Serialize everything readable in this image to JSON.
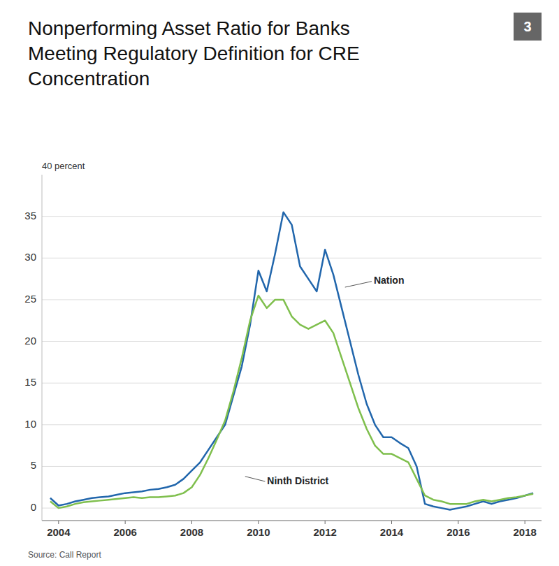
{
  "chart_data": {
    "type": "line",
    "title": "Nonperforming Asset Ratio for Banks Meeting Regulatory Definition for CRE Concentration",
    "y_label": "40 percent",
    "source": "Source: Call Report",
    "x": [
      2003.75,
      2004.0,
      2004.25,
      2004.5,
      2004.75,
      2005.0,
      2005.25,
      2005.5,
      2005.75,
      2006.0,
      2006.25,
      2006.5,
      2006.75,
      2007.0,
      2007.25,
      2007.5,
      2007.75,
      2008.0,
      2008.25,
      2008.5,
      2008.75,
      2009.0,
      2009.25,
      2009.5,
      2009.75,
      2010.0,
      2010.25,
      2010.5,
      2010.75,
      2011.0,
      2011.25,
      2011.5,
      2011.75,
      2012.0,
      2012.25,
      2012.5,
      2012.75,
      2013.0,
      2013.25,
      2013.5,
      2013.75,
      2014.0,
      2014.25,
      2014.5,
      2014.75,
      2015.0,
      2015.25,
      2015.5,
      2015.75,
      2016.0,
      2016.25,
      2016.5,
      2016.75,
      2017.0,
      2017.25,
      2017.5,
      2017.75,
      2018.0,
      2018.25
    ],
    "series": [
      {
        "color": "#2166ac",
        "values": [
          1.2,
          0.3,
          0.5,
          0.8,
          1.0,
          1.2,
          1.3,
          1.4,
          1.6,
          1.8,
          1.9,
          2.0,
          2.2,
          2.3,
          2.5,
          2.8,
          3.5,
          4.5,
          5.5,
          7.0,
          8.5,
          10.0,
          13.5,
          17.0,
          22.0,
          28.5,
          26.0,
          30.5,
          35.5,
          34.0,
          29.0,
          27.5,
          26.0,
          31.0,
          28.0,
          24.0,
          20.0,
          16.0,
          12.5,
          10.0,
          8.5,
          8.5,
          7.8,
          7.2,
          5.0,
          0.5,
          0.2,
          0.0,
          -0.2,
          0.0,
          0.2,
          0.5,
          0.8,
          0.5,
          0.8,
          1.0,
          1.2,
          1.5,
          1.8
        ]
      },
      {
        "color": "#7fbf4d",
        "values": [
          0.8,
          0.0,
          0.2,
          0.5,
          0.7,
          0.8,
          0.9,
          1.0,
          1.1,
          1.2,
          1.3,
          1.2,
          1.3,
          1.3,
          1.4,
          1.5,
          1.8,
          2.5,
          4.0,
          6.0,
          8.2,
          10.5,
          14.0,
          18.0,
          22.5,
          25.5,
          24.0,
          25.0,
          25.0,
          23.0,
          22.0,
          21.5,
          22.0,
          22.5,
          21.0,
          18.0,
          15.0,
          12.0,
          9.5,
          7.5,
          6.5,
          6.5,
          6.0,
          5.5,
          3.5,
          1.5,
          1.0,
          0.8,
          0.5,
          0.5,
          0.5,
          0.8,
          1.0,
          0.8,
          1.0,
          1.2,
          1.3,
          1.5,
          1.7
        ]
      }
    ],
    "annotations": [
      {
        "text": "Nation",
        "x": 2012.6,
        "y": 26.5,
        "text_x": 2013.4,
        "text_y": 27.2
      },
      {
        "text": "Ninth District",
        "x": 2009.6,
        "y": 3.8,
        "text_x": 2010.2,
        "text_y": 3.2
      },
      {
        "text": "3"
      }
    ],
    "xlim": [
      2003.5,
      2018.5
    ],
    "ylim": [
      -1.5,
      40
    ],
    "xticks": [
      2004,
      2006,
      2008,
      2010,
      2012,
      2014,
      2016,
      2018
    ],
    "yticks": [
      0,
      5,
      10,
      15,
      20,
      25,
      30,
      35
    ],
    "grid": true
  }
}
